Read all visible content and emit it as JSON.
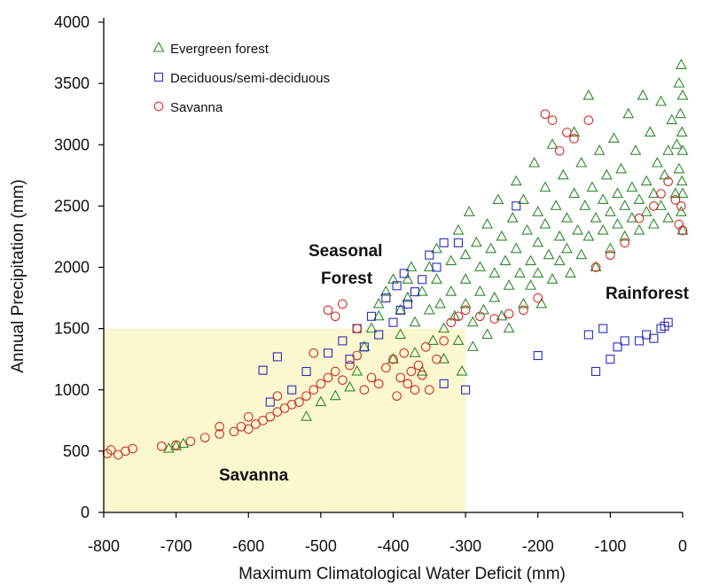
{
  "chart_data": {
    "type": "scatter",
    "title": "",
    "xlabel": "Maximum Climatological Water Deficit (mm)",
    "ylabel": "Annual Precipitation (mm)",
    "xlim": [
      -800,
      0
    ],
    "ylim": [
      0,
      4000
    ],
    "xticks": [
      -800,
      -700,
      -600,
      -500,
      -400,
      -300,
      -200,
      -100,
      0
    ],
    "yticks": [
      0,
      500,
      1000,
      1500,
      2000,
      2500,
      3000,
      3500,
      4000
    ],
    "grid": false,
    "legend_position": "top-left",
    "shaded_region": {
      "x": [
        -800,
        -300
      ],
      "y": [
        0,
        1500
      ],
      "color": "#fbf8cf"
    },
    "annotations": [
      {
        "text": "Seasonal",
        "x": -420,
        "y": 2100
      },
      {
        "text": "Forest",
        "x": -420,
        "y": 1930
      },
      {
        "text": "Rainforest",
        "x": -40,
        "y": 1720
      },
      {
        "text": "Savanna",
        "x": -680,
        "y": 290
      }
    ],
    "series": [
      {
        "name": "Evergreen forest",
        "marker": "triangle",
        "color": "#2e8b2e",
        "points": [
          [
            -710,
            520
          ],
          [
            -700,
            540
          ],
          [
            -690,
            560
          ],
          [
            -520,
            780
          ],
          [
            -500,
            900
          ],
          [
            -480,
            950
          ],
          [
            -460,
            1020
          ],
          [
            -450,
            1150
          ],
          [
            -440,
            1350
          ],
          [
            -430,
            1500
          ],
          [
            -420,
            1700
          ],
          [
            -420,
            1600
          ],
          [
            -410,
            1800
          ],
          [
            -400,
            1900
          ],
          [
            -400,
            1250
          ],
          [
            -390,
            1650
          ],
          [
            -390,
            1450
          ],
          [
            -380,
            1900
          ],
          [
            -380,
            1750
          ],
          [
            -375,
            2000
          ],
          [
            -370,
            1550
          ],
          [
            -370,
            1300
          ],
          [
            -360,
            1800
          ],
          [
            -360,
            1150
          ],
          [
            -350,
            2000
          ],
          [
            -350,
            1650
          ],
          [
            -345,
            1400
          ],
          [
            -340,
            2150
          ],
          [
            -340,
            1900
          ],
          [
            -335,
            1700
          ],
          [
            -330,
            1500
          ],
          [
            -330,
            1250
          ],
          [
            -320,
            2050
          ],
          [
            -320,
            1800
          ],
          [
            -315,
            1600
          ],
          [
            -310,
            2300
          ],
          [
            -310,
            1400
          ],
          [
            -305,
            1150
          ],
          [
            -300,
            2100
          ],
          [
            -300,
            1900
          ],
          [
            -300,
            1700
          ],
          [
            -295,
            2450
          ],
          [
            -290,
            1550
          ],
          [
            -290,
            1350
          ],
          [
            -285,
            2200
          ],
          [
            -280,
            2000
          ],
          [
            -280,
            1800
          ],
          [
            -275,
            1650
          ],
          [
            -270,
            2350
          ],
          [
            -270,
            1450
          ],
          [
            -265,
            2150
          ],
          [
            -260,
            1950
          ],
          [
            -260,
            1750
          ],
          [
            -255,
            2550
          ],
          [
            -250,
            2250
          ],
          [
            -250,
            1600
          ],
          [
            -245,
            2050
          ],
          [
            -240,
            1850
          ],
          [
            -240,
            1500
          ],
          [
            -235,
            2400
          ],
          [
            -230,
            2700
          ],
          [
            -230,
            2150
          ],
          [
            -225,
            1950
          ],
          [
            -220,
            1700
          ],
          [
            -220,
            2550
          ],
          [
            -215,
            2300
          ],
          [
            -210,
            2050
          ],
          [
            -210,
            1850
          ],
          [
            -205,
            2850
          ],
          [
            -200,
            2450
          ],
          [
            -200,
            2200
          ],
          [
            -200,
            1950
          ],
          [
            -195,
            1700
          ],
          [
            -190,
            2650
          ],
          [
            -190,
            2350
          ],
          [
            -185,
            2100
          ],
          [
            -180,
            3000
          ],
          [
            -180,
            1900
          ],
          [
            -175,
            2500
          ],
          [
            -170,
            2250
          ],
          [
            -170,
            2050
          ],
          [
            -165,
            2750
          ],
          [
            -160,
            2400
          ],
          [
            -160,
            2150
          ],
          [
            -155,
            1950
          ],
          [
            -150,
            2600
          ],
          [
            -150,
            3100
          ],
          [
            -145,
            2300
          ],
          [
            -140,
            2100
          ],
          [
            -140,
            2850
          ],
          [
            -135,
            2500
          ],
          [
            -130,
            3400
          ],
          [
            -130,
            2250
          ],
          [
            -125,
            2650
          ],
          [
            -120,
            2400
          ],
          [
            -120,
            2000
          ],
          [
            -115,
            2950
          ],
          [
            -110,
            2550
          ],
          [
            -110,
            2300
          ],
          [
            -105,
            2750
          ],
          [
            -100,
            2450
          ],
          [
            -100,
            2150
          ],
          [
            -95,
            3050
          ],
          [
            -90,
            2600
          ],
          [
            -90,
            2350
          ],
          [
            -85,
            2800
          ],
          [
            -80,
            2500
          ],
          [
            -80,
            2250
          ],
          [
            -75,
            3250
          ],
          [
            -70,
            2650
          ],
          [
            -70,
            2400
          ],
          [
            -65,
            2950
          ],
          [
            -60,
            2550
          ],
          [
            -60,
            2300
          ],
          [
            -55,
            3400
          ],
          [
            -50,
            2700
          ],
          [
            -50,
            2450
          ],
          [
            -45,
            3100
          ],
          [
            -40,
            2600
          ],
          [
            -40,
            2350
          ],
          [
            -35,
            2850
          ],
          [
            -30,
            3350
          ],
          [
            -30,
            2500
          ],
          [
            -25,
            2750
          ],
          [
            -20,
            2950
          ],
          [
            -20,
            2400
          ],
          [
            -15,
            3200
          ],
          [
            -10,
            2600
          ],
          [
            -8,
            3000
          ],
          [
            -5,
            3500
          ],
          [
            -5,
            2800
          ],
          [
            -3,
            3250
          ],
          [
            -2,
            3650
          ],
          [
            -2,
            2450
          ],
          [
            -1,
            3100
          ],
          [
            -1,
            2700
          ],
          [
            0,
            3400
          ],
          [
            0,
            2950
          ],
          [
            0,
            2600
          ],
          [
            0,
            2300
          ]
        ]
      },
      {
        "name": "Deciduous/semi-deciduous",
        "marker": "square",
        "color": "#2b2bbd",
        "points": [
          [
            -580,
            1160
          ],
          [
            -560,
            1270
          ],
          [
            -570,
            900
          ],
          [
            -540,
            1000
          ],
          [
            -520,
            1150
          ],
          [
            -490,
            1300
          ],
          [
            -470,
            1400
          ],
          [
            -460,
            1250
          ],
          [
            -450,
            1500
          ],
          [
            -440,
            1350
          ],
          [
            -430,
            1600
          ],
          [
            -420,
            1450
          ],
          [
            -410,
            1750
          ],
          [
            -400,
            1550
          ],
          [
            -395,
            1850
          ],
          [
            -390,
            1650
          ],
          [
            -385,
            1950
          ],
          [
            -380,
            1700
          ],
          [
            -370,
            1800
          ],
          [
            -360,
            1900
          ],
          [
            -350,
            2100
          ],
          [
            -340,
            2000
          ],
          [
            -330,
            2200
          ],
          [
            -310,
            2200
          ],
          [
            -330,
            1050
          ],
          [
            -300,
            1000
          ],
          [
            -230,
            2500
          ],
          [
            -200,
            1280
          ],
          [
            -130,
            1450
          ],
          [
            -120,
            1150
          ],
          [
            -110,
            1500
          ],
          [
            -100,
            1250
          ],
          [
            -90,
            1350
          ],
          [
            -80,
            1400
          ],
          [
            -60,
            1400
          ],
          [
            -50,
            1450
          ],
          [
            -40,
            1420
          ],
          [
            -30,
            1500
          ],
          [
            -25,
            1520
          ],
          [
            -20,
            1550
          ]
        ]
      },
      {
        "name": "Savanna",
        "marker": "circle",
        "color": "#d0302a",
        "points": [
          [
            -795,
            480
          ],
          [
            -790,
            510
          ],
          [
            -780,
            470
          ],
          [
            -770,
            500
          ],
          [
            -760,
            520
          ],
          [
            -720,
            540
          ],
          [
            -700,
            550
          ],
          [
            -680,
            580
          ],
          [
            -660,
            610
          ],
          [
            -640,
            640
          ],
          [
            -620,
            660
          ],
          [
            -610,
            700
          ],
          [
            -600,
            680
          ],
          [
            -590,
            720
          ],
          [
            -580,
            750
          ],
          [
            -570,
            780
          ],
          [
            -560,
            820
          ],
          [
            -550,
            850
          ],
          [
            -540,
            880
          ],
          [
            -530,
            900
          ],
          [
            -520,
            950
          ],
          [
            -510,
            1000
          ],
          [
            -500,
            1050
          ],
          [
            -490,
            1100
          ],
          [
            -480,
            1150
          ],
          [
            -470,
            1080
          ],
          [
            -460,
            1200
          ],
          [
            -450,
            1280
          ],
          [
            -440,
            1000
          ],
          [
            -430,
            1100
          ],
          [
            -420,
            1050
          ],
          [
            -410,
            1180
          ],
          [
            -400,
            1250
          ],
          [
            -395,
            950
          ],
          [
            -390,
            1100
          ],
          [
            -385,
            1300
          ],
          [
            -380,
            1050
          ],
          [
            -375,
            1150
          ],
          [
            -370,
            1000
          ],
          [
            -365,
            1200
          ],
          [
            -360,
            1120
          ],
          [
            -355,
            1350
          ],
          [
            -350,
            1000
          ],
          [
            -340,
            1250
          ],
          [
            -330,
            1400
          ],
          [
            -320,
            1550
          ],
          [
            -310,
            1600
          ],
          [
            -300,
            1650
          ],
          [
            -280,
            1600
          ],
          [
            -260,
            1580
          ],
          [
            -240,
            1620
          ],
          [
            -220,
            1650
          ],
          [
            -200,
            1750
          ],
          [
            -190,
            3250
          ],
          [
            -180,
            3200
          ],
          [
            -170,
            2950
          ],
          [
            -160,
            3100
          ],
          [
            -150,
            3050
          ],
          [
            -130,
            3200
          ],
          [
            -120,
            2000
          ],
          [
            -100,
            2100
          ],
          [
            -80,
            2200
          ],
          [
            -60,
            2400
          ],
          [
            -40,
            2500
          ],
          [
            -30,
            2600
          ],
          [
            -20,
            2700
          ],
          [
            -10,
            2550
          ],
          [
            -5,
            2350
          ],
          [
            -2,
            2500
          ],
          [
            0,
            2300
          ],
          [
            -490,
            1650
          ],
          [
            -470,
            1700
          ],
          [
            -480,
            1600
          ],
          [
            -450,
            1500
          ],
          [
            -510,
            1300
          ],
          [
            -560,
            950
          ],
          [
            -600,
            780
          ],
          [
            -640,
            700
          ]
        ]
      }
    ]
  }
}
